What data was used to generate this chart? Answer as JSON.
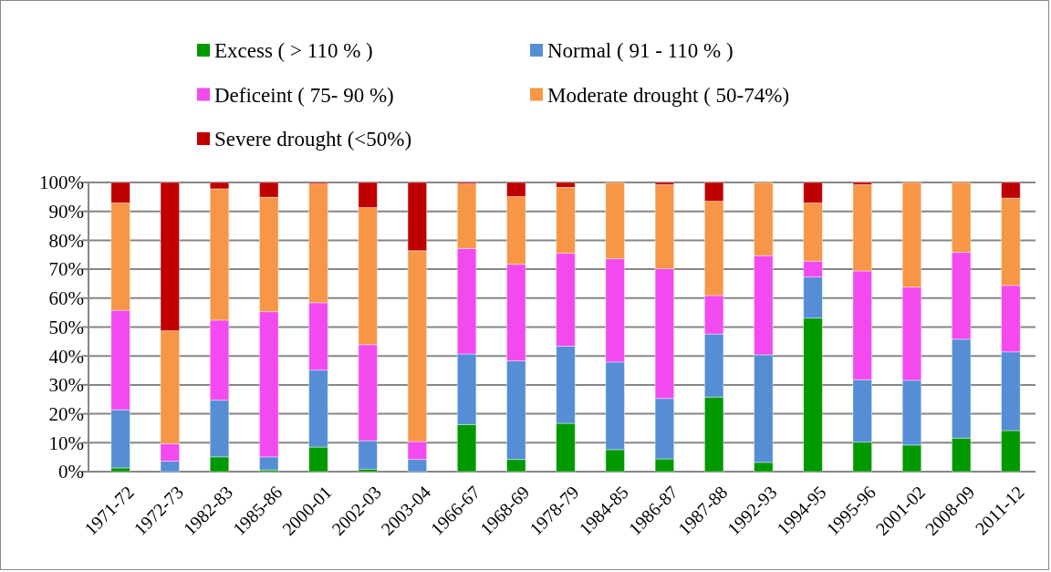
{
  "chart_data": {
    "type": "bar",
    "stacked": true,
    "categories": [
      "1971-72",
      "1972-73",
      "1982-83",
      "1985-86",
      "2000-01",
      "2002-03",
      "2003-04",
      "1966-67",
      "1968-69",
      "1978-79",
      "1984-85",
      "1986-87",
      "1987-88",
      "1992-93",
      "1994-95",
      "1995-96",
      "2001-02",
      "2008-09",
      "2011-12"
    ],
    "series": [
      {
        "name": "Excess ( > 110 % )",
        "color": "#009900",
        "values": [
          1.3,
          0,
          5.1,
          0.6,
          8.5,
          0.9,
          0,
          16.3,
          4.2,
          16.7,
          7.6,
          4.4,
          25.8,
          3.2,
          53.1,
          10.2,
          9.2,
          11.6,
          14.2
        ]
      },
      {
        "name": "Normal ( 91 - 110 % )",
        "color": "#558ed5",
        "values": [
          20.1,
          3.6,
          19.6,
          4.5,
          26.6,
          9.8,
          4.2,
          24.4,
          34.1,
          26.7,
          30.3,
          20.9,
          21.8,
          37.2,
          14.2,
          21.6,
          22.4,
          34.2,
          27.2
        ]
      },
      {
        "name": "Deficeint ( 75- 90 %)",
        "color": "#f34af0",
        "values": [
          34.4,
          6.1,
          27.7,
          50.2,
          23.3,
          33.2,
          6.2,
          36.5,
          33.4,
          32.1,
          35.7,
          44.9,
          13.3,
          34.3,
          5.5,
          37.6,
          32.2,
          30.0,
          23.0
        ]
      },
      {
        "name": "Moderate drought ( 50-74%)",
        "color": "#f79646",
        "values": [
          37.1,
          39.0,
          45.4,
          39.6,
          41.1,
          47.4,
          66.0,
          22.3,
          23.4,
          22.8,
          26.4,
          29.0,
          32.6,
          25.3,
          20.1,
          29.8,
          36.2,
          24.2,
          30.2
        ]
      },
      {
        "name": "Severe drought (<50%)",
        "color": "#c00000",
        "values": [
          7.1,
          51.3,
          2.2,
          5.1,
          0.5,
          8.7,
          23.6,
          0.5,
          4.9,
          1.7,
          0,
          0.8,
          6.5,
          0,
          7.1,
          0.8,
          0,
          0,
          5.4
        ]
      }
    ],
    "ylim": [
      0,
      100
    ],
    "yticks": [
      {
        "value": 0,
        "label": "0%"
      },
      {
        "value": 10,
        "label": "10%"
      },
      {
        "value": 20,
        "label": "20%"
      },
      {
        "value": 30,
        "label": "30%"
      },
      {
        "value": 40,
        "label": "40%"
      },
      {
        "value": 50,
        "label": "50%"
      },
      {
        "value": 60,
        "label": "60%"
      },
      {
        "value": 70,
        "label": "70%"
      },
      {
        "value": 80,
        "label": "80%"
      },
      {
        "value": 90,
        "label": "90%"
      },
      {
        "value": 100,
        "label": "100%"
      }
    ],
    "grid": "y",
    "legend": "top"
  }
}
